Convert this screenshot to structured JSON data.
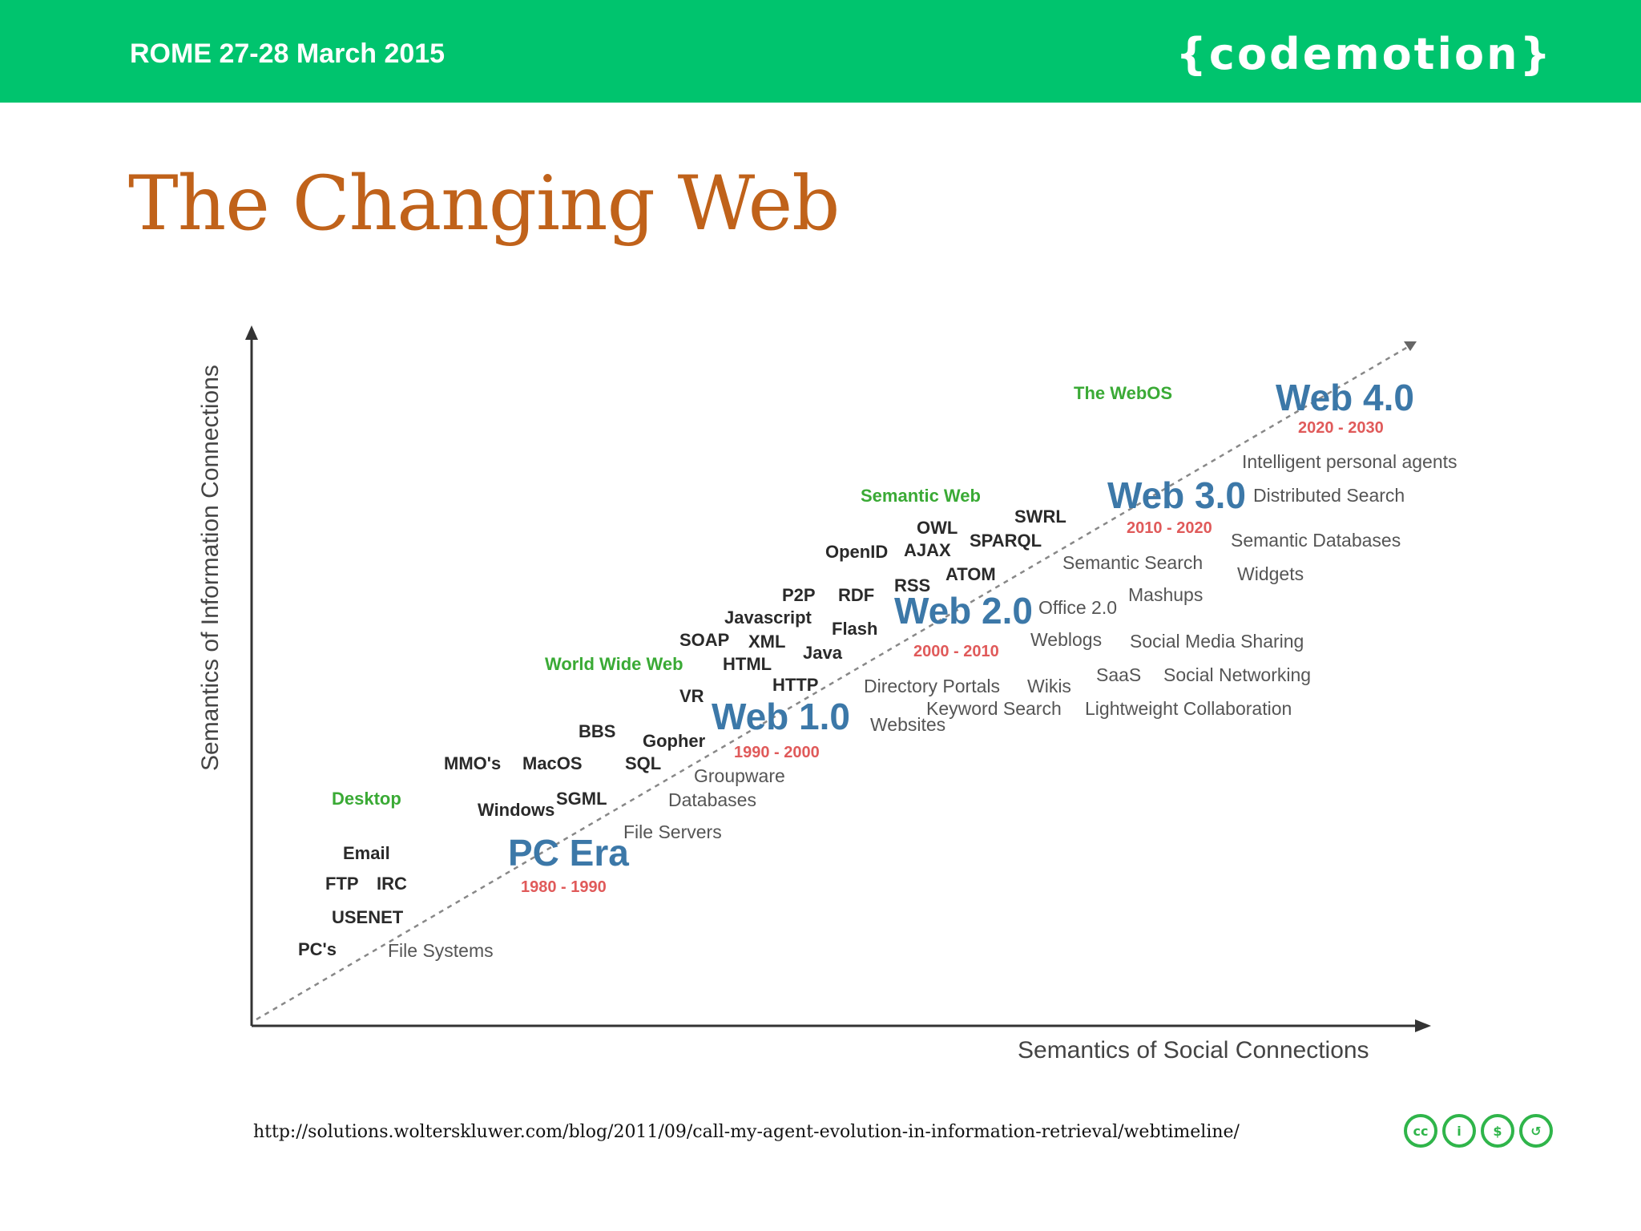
{
  "header": {
    "event": "ROME 27-28 March 2015",
    "logo": "{codemotion}",
    "bar_color": "#00c46e"
  },
  "title": "The Changing Web",
  "diagram": {
    "y_axis_label": "Semantics of Information Connections",
    "x_axis_label": "Semantics of Social Connections",
    "eras": [
      {
        "name": "PC Era",
        "years": "1980 - 1990"
      },
      {
        "name": "Web 1.0",
        "years": "1990 - 2000"
      },
      {
        "name": "Web 2.0",
        "years": "2000 - 2010"
      },
      {
        "name": "Web 3.0",
        "years": "2010 - 2020"
      },
      {
        "name": "Web 4.0",
        "years": "2020 - 2030"
      }
    ],
    "green_labels": [
      "Desktop",
      "World Wide Web",
      "Semantic Web",
      "The WebOS"
    ],
    "bold_terms": [
      "Email",
      "FTP",
      "IRC",
      "USENET",
      "PC's",
      "MMO's",
      "MacOS",
      "Windows",
      "SGML",
      "BBS",
      "Gopher",
      "SQL",
      "VR",
      "SOAP",
      "XML",
      "HTML",
      "HTTP",
      "Java",
      "Javascript",
      "P2P",
      "RDF",
      "Flash",
      "RSS",
      "OpenID",
      "AJAX",
      "OWL",
      "ATOM",
      "SPARQL",
      "SWRL"
    ],
    "regular_terms": [
      "File Systems",
      "File Servers",
      "Databases",
      "Groupware",
      "Websites",
      "Directory Portals",
      "Keyword Search",
      "Wikis",
      "Weblogs",
      "Office 2.0",
      "Lightweight Collaboration",
      "SaaS",
      "Social Networking",
      "Social Media Sharing",
      "Mashups",
      "Semantic Search",
      "Widgets",
      "Semantic Databases",
      "Distributed Search",
      "Intelligent personal agents"
    ]
  },
  "footer": {
    "source_url": "http://solutions.wolterskluwer.com/blog/2011/09/call-my-agent-evolution-in-information-retrieval/webtimeline/",
    "license_icons": [
      "cc-icon",
      "by-icon",
      "nc-icon",
      "sa-icon"
    ],
    "license_glyphs": [
      "cc",
      "i",
      "$",
      "↺"
    ]
  }
}
